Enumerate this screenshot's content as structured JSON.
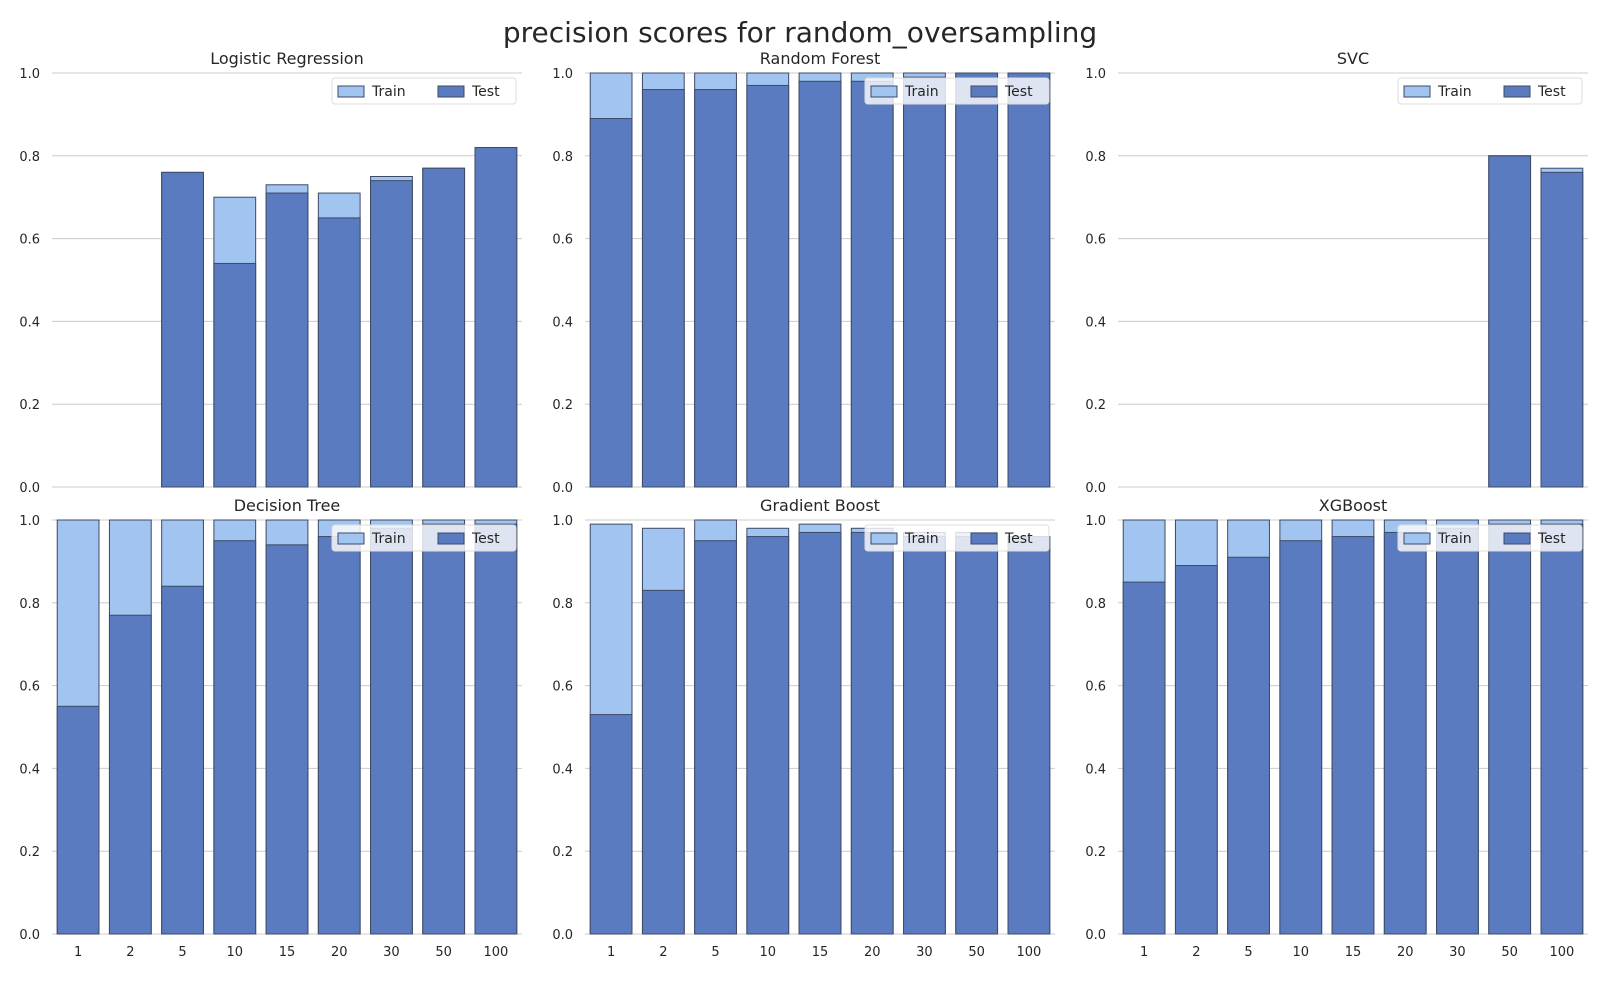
{
  "title": "precision scores for random_oversampling",
  "colors": {
    "train": "#a1c4f0",
    "test": "#5a7bbf"
  },
  "legend": {
    "train_label": "Train",
    "test_label": "Test",
    "placement": "upper right"
  },
  "chart_data": [
    {
      "type": "bar",
      "title": "Logistic Regression",
      "categories": [
        "1",
        "2",
        "5",
        "10",
        "15",
        "20",
        "30",
        "50",
        "100"
      ],
      "ylim": [
        0,
        1.0
      ],
      "yticks": [
        "0.0",
        "0.2",
        "0.4",
        "0.6",
        "0.8",
        "1.0"
      ],
      "grid": true,
      "series": [
        {
          "name": "Train",
          "values": [
            0.0,
            0.0,
            0.76,
            0.7,
            0.73,
            0.71,
            0.75,
            0.77,
            0.82
          ]
        },
        {
          "name": "Test",
          "values": [
            0.0,
            0.0,
            0.76,
            0.54,
            0.71,
            0.65,
            0.74,
            0.77,
            0.82
          ]
        }
      ]
    },
    {
      "type": "bar",
      "title": "Random Forest",
      "categories": [
        "1",
        "2",
        "5",
        "10",
        "15",
        "20",
        "30",
        "50",
        "100"
      ],
      "ylim": [
        0,
        1.0
      ],
      "yticks": [
        "0.0",
        "0.2",
        "0.4",
        "0.6",
        "0.8",
        "1.0"
      ],
      "grid": true,
      "series": [
        {
          "name": "Train",
          "values": [
            1.0,
            1.0,
            1.0,
            1.0,
            1.0,
            1.0,
            1.0,
            1.0,
            1.0
          ]
        },
        {
          "name": "Test",
          "values": [
            0.89,
            0.96,
            0.96,
            0.97,
            0.98,
            0.98,
            0.99,
            1.0,
            1.0
          ]
        }
      ]
    },
    {
      "type": "bar",
      "title": "SVC",
      "categories": [
        "1",
        "2",
        "5",
        "10",
        "15",
        "20",
        "30",
        "50",
        "100"
      ],
      "ylim": [
        0,
        1.0
      ],
      "yticks": [
        "0.0",
        "0.2",
        "0.4",
        "0.6",
        "0.8",
        "1.0"
      ],
      "grid": true,
      "series": [
        {
          "name": "Train",
          "values": [
            0.0,
            0.0,
            0.0,
            0.0,
            0.0,
            0.0,
            0.0,
            0.8,
            0.77
          ]
        },
        {
          "name": "Test",
          "values": [
            0.0,
            0.0,
            0.0,
            0.0,
            0.0,
            0.0,
            0.0,
            0.8,
            0.76
          ]
        }
      ]
    },
    {
      "type": "bar",
      "title": "Decision Tree",
      "categories": [
        "1",
        "2",
        "5",
        "10",
        "15",
        "20",
        "30",
        "50",
        "100"
      ],
      "ylim": [
        0,
        1.0
      ],
      "yticks": [
        "0.0",
        "0.2",
        "0.4",
        "0.6",
        "0.8",
        "1.0"
      ],
      "grid": true,
      "series": [
        {
          "name": "Train",
          "values": [
            1.0,
            1.0,
            1.0,
            1.0,
            1.0,
            1.0,
            1.0,
            1.0,
            1.0
          ]
        },
        {
          "name": "Test",
          "values": [
            0.55,
            0.77,
            0.84,
            0.95,
            0.94,
            0.96,
            0.98,
            0.99,
            0.99
          ]
        }
      ]
    },
    {
      "type": "bar",
      "title": "Gradient Boost",
      "categories": [
        "1",
        "2",
        "5",
        "10",
        "15",
        "20",
        "30",
        "50",
        "100"
      ],
      "ylim": [
        0,
        1.0
      ],
      "yticks": [
        "0.0",
        "0.2",
        "0.4",
        "0.6",
        "0.8",
        "1.0"
      ],
      "grid": true,
      "series": [
        {
          "name": "Train",
          "values": [
            0.99,
            0.98,
            1.0,
            0.98,
            0.99,
            0.98,
            0.97,
            0.97,
            0.96
          ]
        },
        {
          "name": "Test",
          "values": [
            0.53,
            0.83,
            0.95,
            0.96,
            0.97,
            0.97,
            0.96,
            0.96,
            0.96
          ]
        }
      ]
    },
    {
      "type": "bar",
      "title": "XGBoost",
      "categories": [
        "1",
        "2",
        "5",
        "10",
        "15",
        "20",
        "30",
        "50",
        "100"
      ],
      "ylim": [
        0,
        1.0
      ],
      "yticks": [
        "0.0",
        "0.2",
        "0.4",
        "0.6",
        "0.8",
        "1.0"
      ],
      "grid": true,
      "series": [
        {
          "name": "Train",
          "values": [
            1.0,
            1.0,
            1.0,
            1.0,
            1.0,
            1.0,
            1.0,
            1.0,
            1.0
          ]
        },
        {
          "name": "Test",
          "values": [
            0.85,
            0.89,
            0.91,
            0.95,
            0.96,
            0.97,
            0.98,
            0.99,
            0.99
          ]
        }
      ]
    }
  ]
}
